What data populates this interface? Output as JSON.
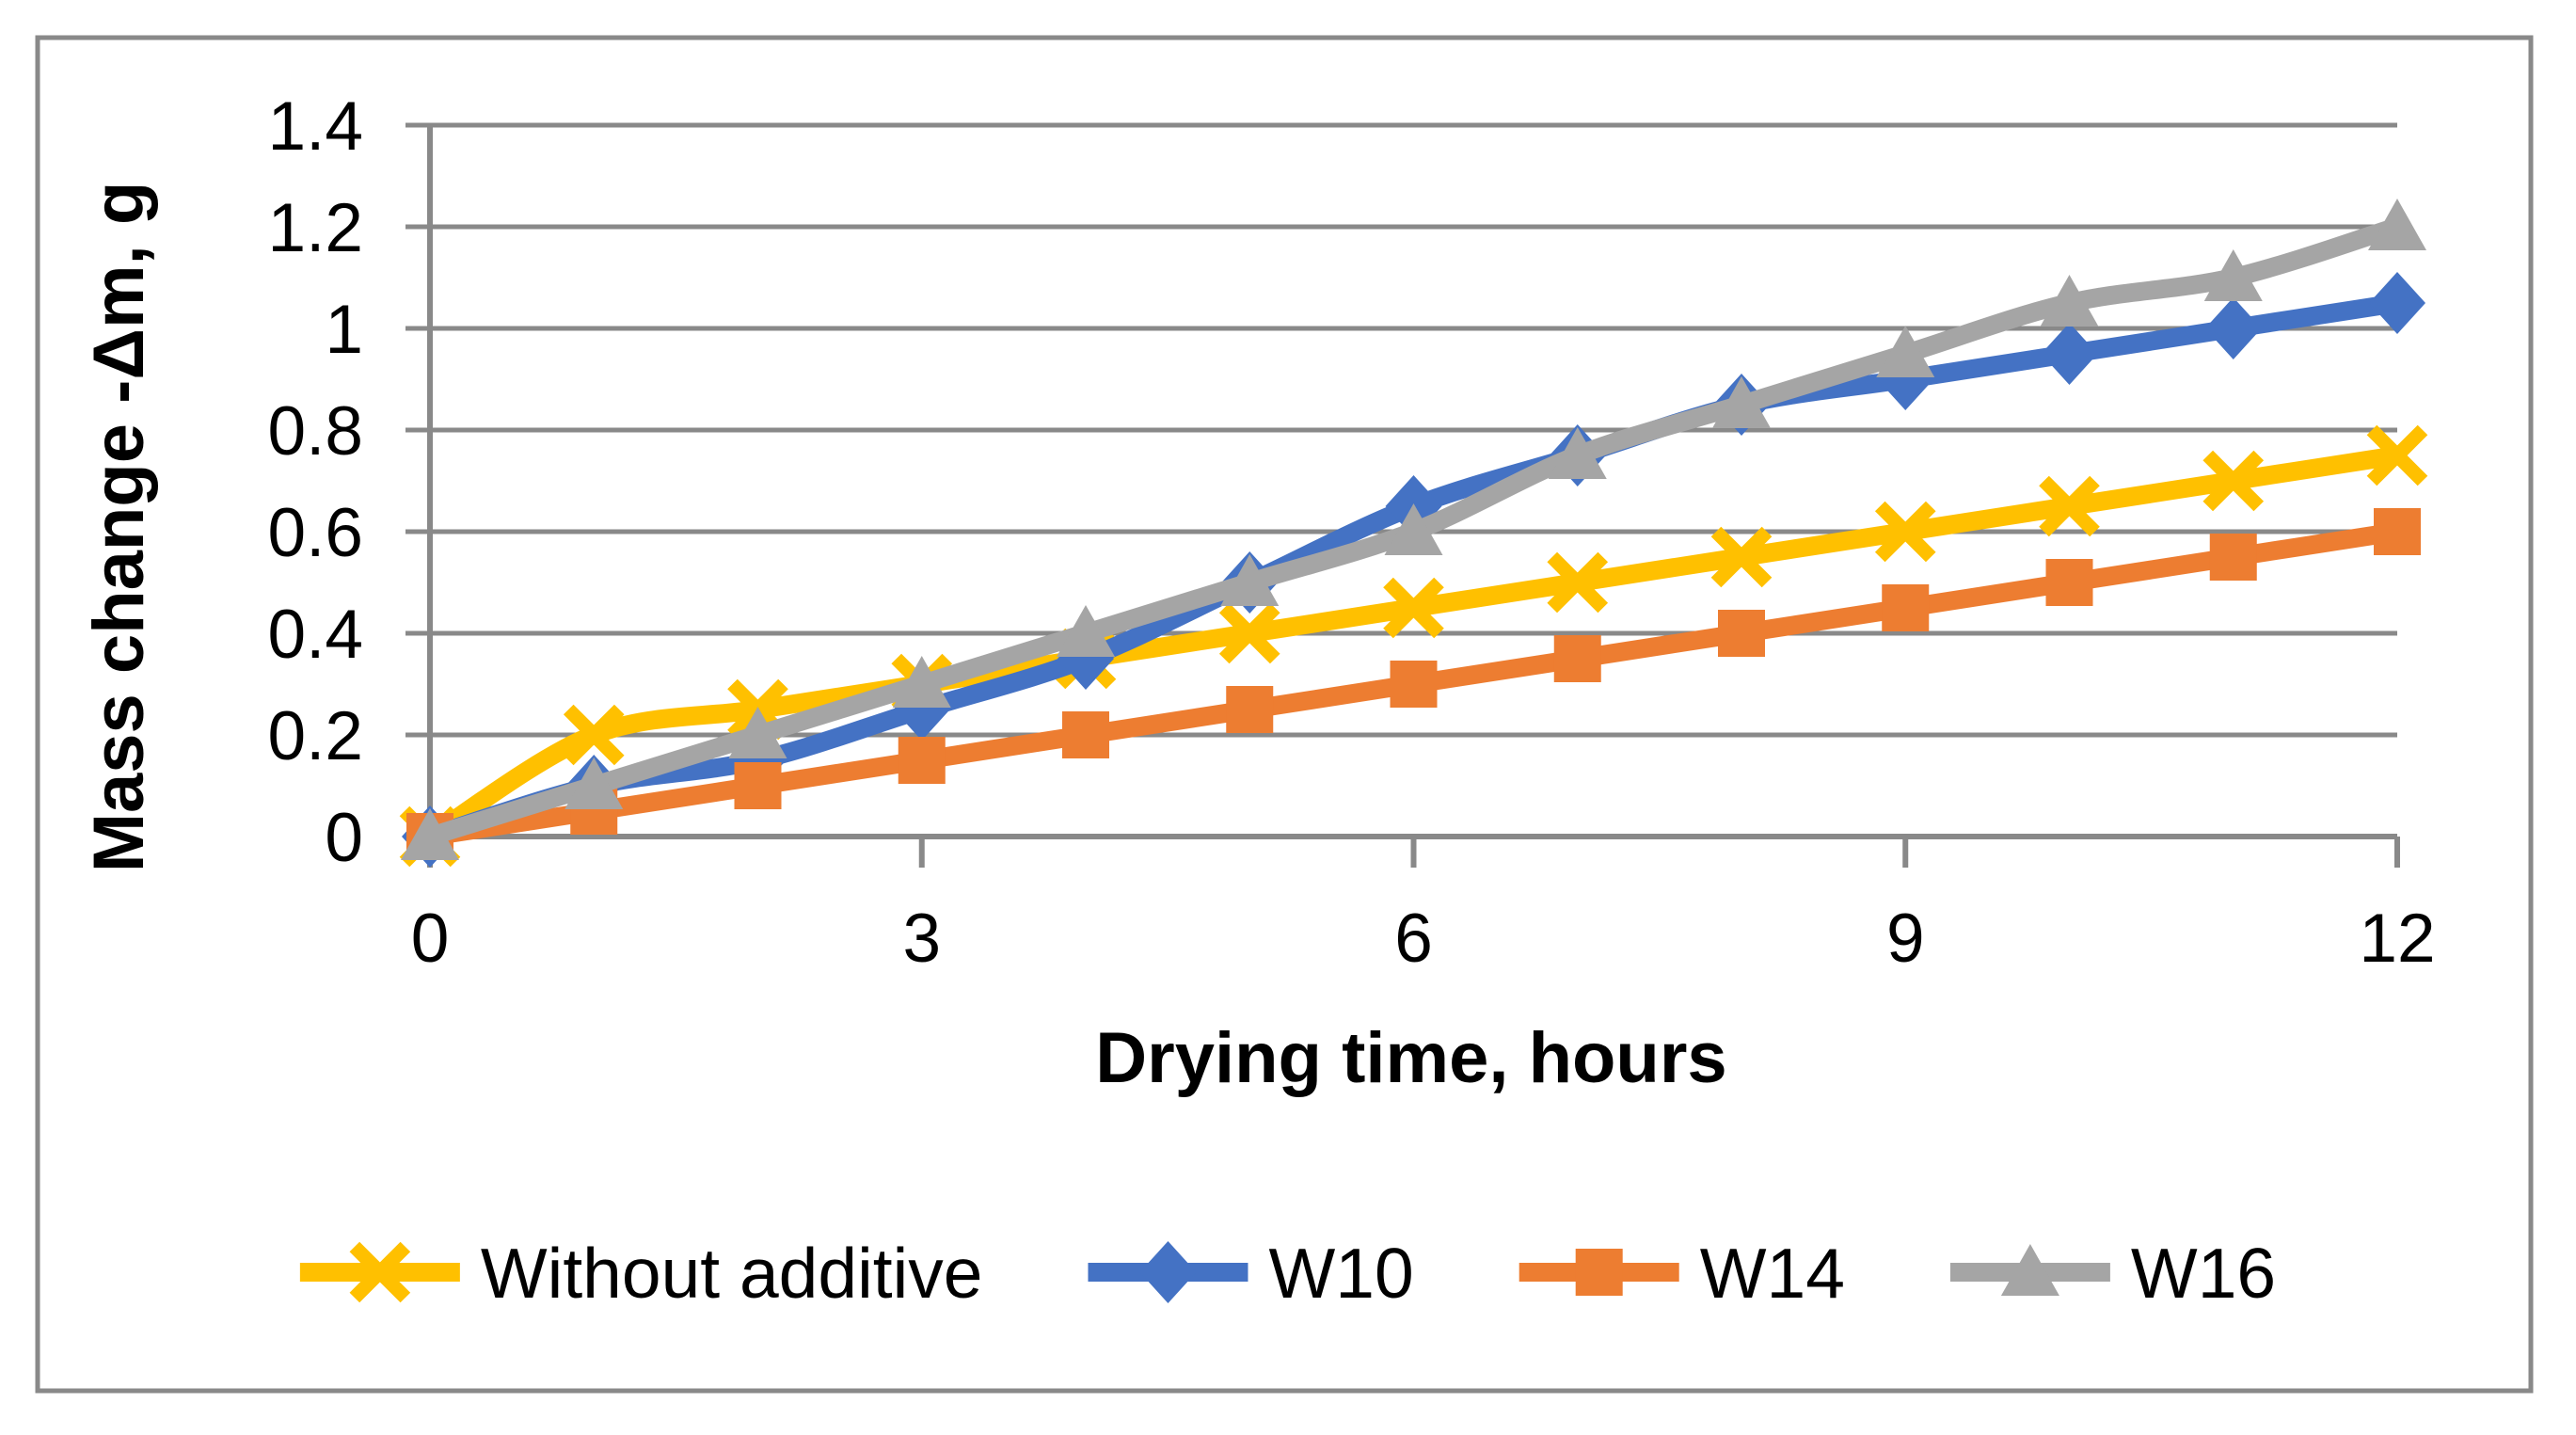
{
  "chart_data": {
    "type": "line",
    "title": "",
    "xlabel": "Drying time, hours",
    "ylabel": "Mass change -Δm, g",
    "x": [
      0,
      1,
      2,
      3,
      4,
      5,
      6,
      7,
      8,
      9,
      10,
      11,
      12
    ],
    "x_tick_values": [
      0,
      3,
      6,
      9,
      12
    ],
    "x_tick_labels": [
      "0",
      "3",
      "6",
      "9",
      "12"
    ],
    "y_tick_values": [
      0,
      0.2,
      0.4,
      0.6,
      0.8,
      1.0,
      1.2,
      1.4
    ],
    "y_tick_labels": [
      "0",
      "0.2",
      "0.4",
      "0.6",
      "0.8",
      "1",
      "1.2",
      "1.4"
    ],
    "xlim": [
      0,
      12
    ],
    "ylim": [
      0,
      1.4
    ],
    "grid": "horizontal",
    "legend_position": "bottom",
    "series": [
      {
        "name": "Without additive",
        "marker": "x-cross",
        "color": "#FFC000",
        "values": [
          0,
          0.2,
          0.25,
          0.3,
          0.35,
          0.4,
          0.45,
          0.5,
          0.55,
          0.6,
          0.65,
          0.7,
          0.75
        ]
      },
      {
        "name": "W10",
        "marker": "diamond",
        "color": "#4472C4",
        "values": [
          0,
          0.1,
          0.15,
          0.25,
          0.35,
          0.5,
          0.65,
          0.75,
          0.85,
          0.9,
          0.95,
          1.0,
          1.05
        ]
      },
      {
        "name": "W14",
        "marker": "square",
        "color": "#ED7D31",
        "values": [
          0,
          0.05,
          0.1,
          0.15,
          0.2,
          0.25,
          0.3,
          0.35,
          0.4,
          0.45,
          0.5,
          0.55,
          0.6
        ]
      },
      {
        "name": "W16",
        "marker": "triangle",
        "color": "#A5A5A5",
        "values": [
          0,
          0.1,
          0.2,
          0.3,
          0.4,
          0.5,
          0.6,
          0.75,
          0.85,
          0.95,
          1.05,
          1.1,
          1.2
        ]
      }
    ]
  },
  "colors": {
    "grid": "#898989",
    "axis": "#898989",
    "border": "#898989",
    "text": "#000000",
    "background": "#FFFFFF"
  }
}
